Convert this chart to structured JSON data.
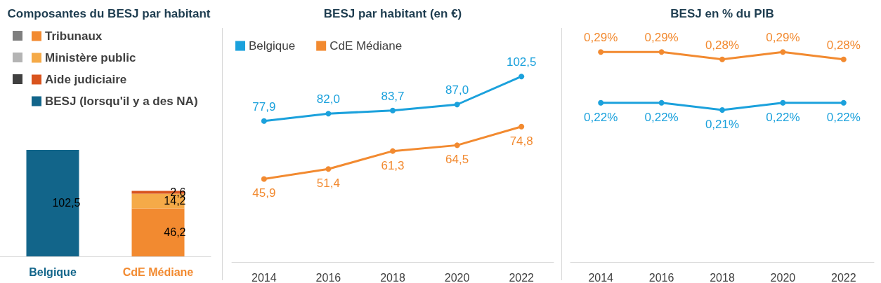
{
  "chart_data": [
    {
      "type": "bar",
      "title": "Composantes du BESJ par habitant",
      "stacked": true,
      "legend": "top left",
      "categories": [
        "Belgique",
        "CdE Médiane"
      ],
      "series": [
        {
          "name": "Tribunaux",
          "colors": [
            "#7f7f7f",
            "#f28a30"
          ],
          "values": [
            null,
            46.2
          ],
          "value_labels": [
            null,
            "46,2"
          ]
        },
        {
          "name": "Ministère public",
          "colors": [
            "#b4b4b4",
            "#f5aa48"
          ],
          "values": [
            null,
            14.2
          ],
          "value_labels": [
            null,
            "14,2"
          ]
        },
        {
          "name": "Aide judiciaire",
          "colors": [
            "#404040",
            "#d9541e"
          ],
          "values": [
            null,
            2.6
          ],
          "value_labels": [
            null,
            "2,6"
          ]
        },
        {
          "name": "BESJ (lorsqu'il y a des NA)",
          "colors": [
            "#12658a",
            "#ffffff"
          ],
          "values": [
            102.5,
            null
          ],
          "value_labels": [
            "102,5",
            null
          ]
        }
      ]
    },
    {
      "type": "line",
      "title": "BESJ par habitant (en €)",
      "legend": "top left",
      "marker": "circle",
      "categories": [
        "2014",
        "2016",
        "2018",
        "2020",
        "2022"
      ],
      "series": [
        {
          "name": "Belgique",
          "color": "#1ba1dc",
          "values": [
            77.9,
            82.0,
            83.7,
            87.0,
            102.5
          ],
          "value_labels": [
            "77,9",
            "82,0",
            "83,7",
            "87,0",
            "102,5"
          ]
        },
        {
          "name": "CdE Médiane",
          "color": "#f28a30",
          "values": [
            45.9,
            51.4,
            61.3,
            64.5,
            74.8
          ],
          "value_labels": [
            "45,9",
            "51,4",
            "61,3",
            "64,5",
            "74,8"
          ]
        }
      ]
    },
    {
      "type": "line",
      "title": "BESJ en % du PIB",
      "marker": "circle",
      "categories": [
        "2014",
        "2016",
        "2018",
        "2020",
        "2022"
      ],
      "series": [
        {
          "color": "#f28a30",
          "values": [
            0.29,
            0.29,
            0.28,
            0.29,
            0.28
          ],
          "value_labels": [
            "0,29%",
            "0,29%",
            "0,28%",
            "0,29%",
            "0,28%"
          ]
        },
        {
          "color": "#1ba1dc",
          "values": [
            0.22,
            0.22,
            0.21,
            0.22,
            0.22
          ],
          "value_labels": [
            "0,22%",
            "0,22%",
            "0,21%",
            "0,22%",
            "0,22%"
          ]
        }
      ]
    }
  ]
}
